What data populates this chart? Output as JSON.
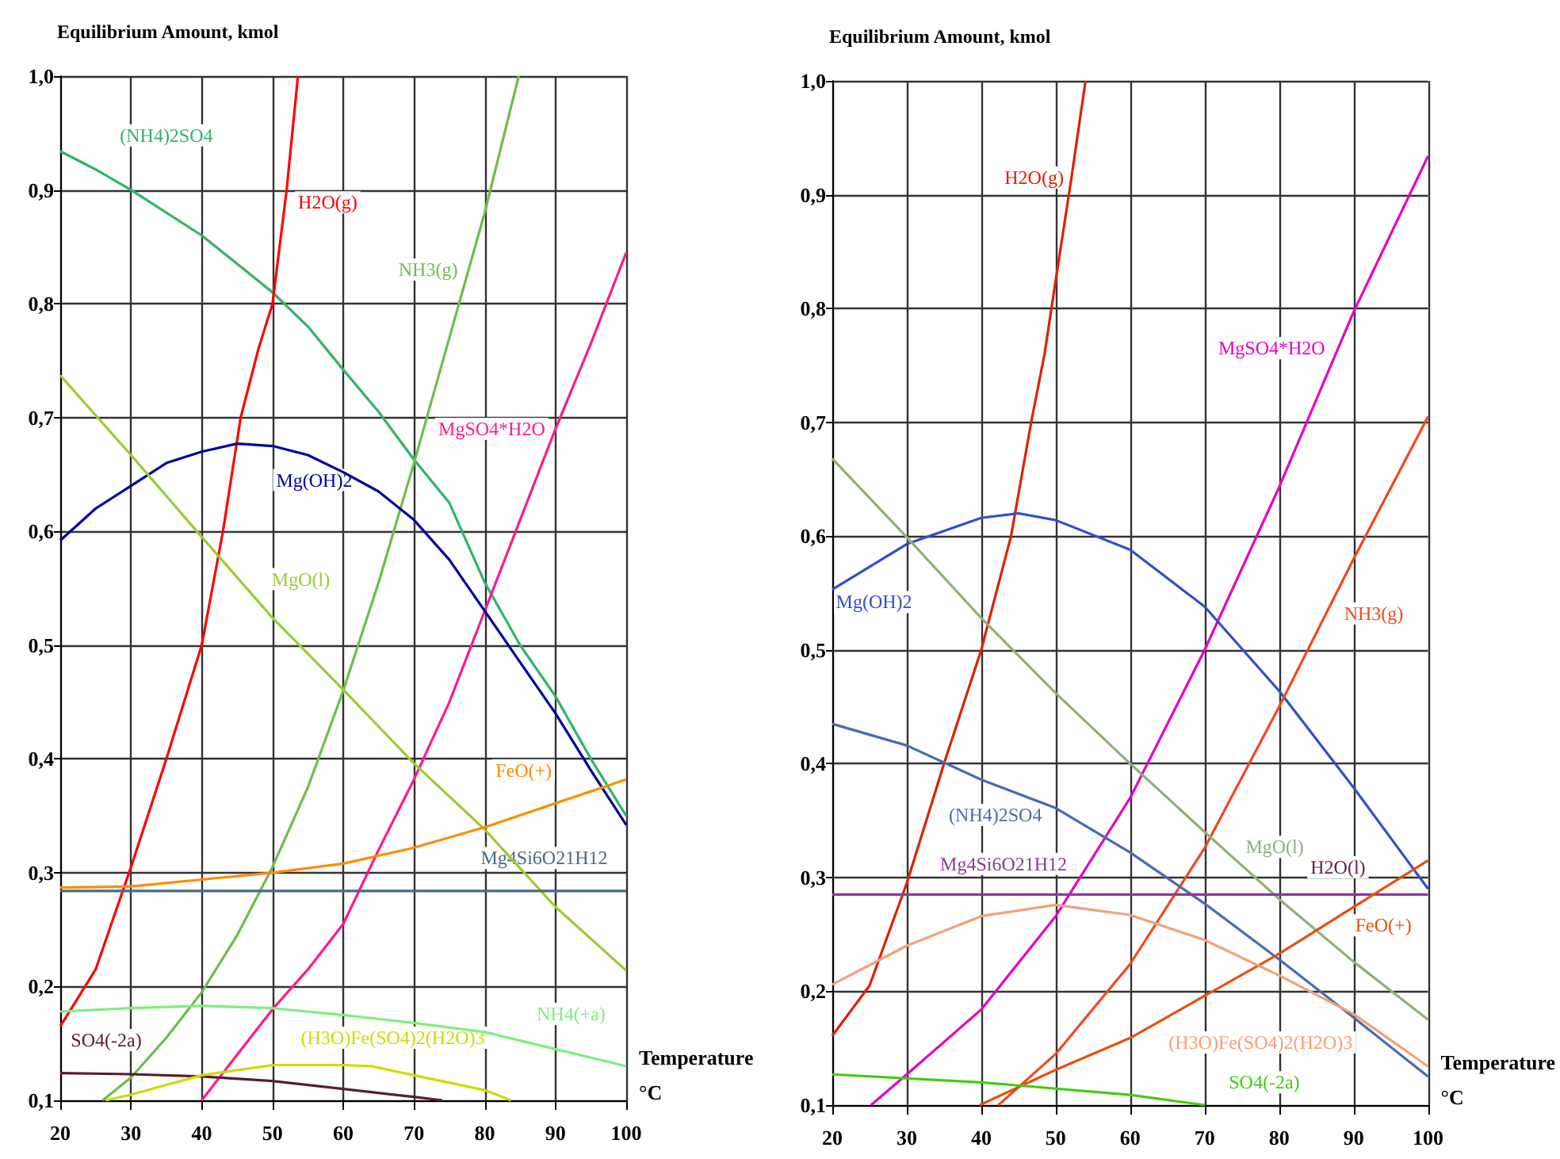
{
  "chart_data": [
    {
      "type": "line",
      "xlabel": "Temperature °C",
      "ylabel": "Equilibrium Amount, kmol",
      "xlim": [
        20,
        100
      ],
      "ylim": [
        0.1,
        1.0
      ],
      "xticks": [
        20,
        30,
        40,
        50,
        60,
        70,
        80,
        90,
        100
      ],
      "yticks": [
        {
          "value": 0.1,
          "label": "0,1"
        },
        {
          "value": 0.2,
          "label": "0,2"
        },
        {
          "value": 0.3,
          "label": "0,3"
        },
        {
          "value": 0.4,
          "label": "0,4"
        },
        {
          "value": 0.5,
          "label": "0,5"
        },
        {
          "value": 0.6,
          "label": "0,6"
        },
        {
          "value": 0.7,
          "label": "0,7"
        },
        {
          "value": 0.8,
          "label": "0,8"
        },
        {
          "value": 0.9,
          "label": "0,9"
        },
        {
          "value": 1.0,
          "label": "1,0"
        }
      ],
      "grid": true,
      "series": [
        {
          "name": "(NH4)2SO4",
          "color": "#33b36b",
          "x": [
            20,
            25,
            30,
            35,
            40,
            45,
            50,
            55,
            60,
            65,
            70,
            75,
            80,
            85,
            90,
            95,
            100
          ],
          "values": [
            0.934,
            0.918,
            0.9,
            0.88,
            0.86,
            0.835,
            0.81,
            0.78,
            0.742,
            0.705,
            0.663,
            0.625,
            0.555,
            0.5,
            0.455,
            0.4,
            0.35
          ]
        },
        {
          "name": "H2O(g)",
          "color": "#ff0000",
          "x": [
            20,
            25,
            30,
            35,
            40,
            43,
            45.5,
            48,
            50,
            52,
            53.6
          ],
          "values": [
            0.165,
            0.215,
            0.305,
            0.4,
            0.5,
            0.6,
            0.7,
            0.76,
            0.8,
            0.9,
            1.0
          ]
        },
        {
          "name": "NH3(g)",
          "color": "#6abf4b",
          "x": [
            26,
            30,
            35,
            40,
            45,
            50,
            55,
            60,
            65,
            70,
            75,
            80,
            84.8
          ],
          "values": [
            0.1,
            0.12,
            0.155,
            0.195,
            0.245,
            0.305,
            0.375,
            0.46,
            0.555,
            0.66,
            0.77,
            0.88,
            1.0
          ]
        },
        {
          "name": "MgSO4*H2O",
          "color": "#ff1a8c",
          "x": [
            40,
            45,
            50,
            55,
            60,
            65,
            70,
            75,
            80,
            85,
            90,
            95,
            100
          ],
          "values": [
            0.1,
            0.14,
            0.18,
            0.215,
            0.255,
            0.32,
            0.382,
            0.45,
            0.53,
            0.61,
            0.69,
            0.765,
            0.845
          ]
        },
        {
          "name": "Mg(OH)2",
          "color": "#00009c",
          "x": [
            20,
            25,
            30,
            35,
            40,
            45,
            50,
            55,
            60,
            65,
            70,
            75,
            80,
            85,
            90,
            95,
            100
          ],
          "values": [
            0.592,
            0.62,
            0.64,
            0.66,
            0.67,
            0.677,
            0.675,
            0.667,
            0.652,
            0.635,
            0.61,
            0.575,
            0.53,
            0.485,
            0.44,
            0.39,
            0.342
          ]
        },
        {
          "name": "MgO(l)",
          "color": "#9acd32",
          "x": [
            20,
            30,
            40,
            50,
            60,
            70,
            80,
            90,
            100
          ],
          "values": [
            0.737,
            0.667,
            0.595,
            0.524,
            0.461,
            0.396,
            0.338,
            0.27,
            0.214
          ]
        },
        {
          "name": "FeO(+)",
          "color": "#ff8c00",
          "x": [
            20,
            30,
            40,
            50,
            60,
            70,
            80,
            90,
            100
          ],
          "values": [
            0.287,
            0.288,
            0.294,
            0.3,
            0.308,
            0.322,
            0.34,
            0.361,
            0.382
          ]
        },
        {
          "name": "Mg4Si6O21H12",
          "color": "#4a6a85",
          "x": [
            20,
            100
          ],
          "values": [
            0.284,
            0.284
          ]
        },
        {
          "name": "NH4(+a)",
          "color": "#80ee80",
          "x": [
            20,
            30,
            40,
            50,
            60,
            70,
            80,
            90,
            100
          ],
          "values": [
            0.178,
            0.181,
            0.183,
            0.181,
            0.175,
            0.168,
            0.16,
            0.145,
            0.13
          ]
        },
        {
          "name": "SO4(-2a)",
          "color": "#5c1a33",
          "x": [
            20,
            30,
            40,
            50,
            60,
            70,
            74
          ],
          "values": [
            0.124,
            0.123,
            0.121,
            0.117,
            0.11,
            0.103,
            0.1
          ]
        },
        {
          "name": "(H3O)Fe(SO4)2(H2O)3",
          "color": "#ccdd00",
          "x": [
            26.4,
            30,
            40,
            50,
            60,
            64,
            70,
            80,
            83.7
          ],
          "values": [
            0.1,
            0.105,
            0.122,
            0.131,
            0.131,
            0.13,
            0.122,
            0.109,
            0.1
          ]
        }
      ]
    },
    {
      "type": "line",
      "xlabel": "Temperature °C",
      "ylabel": "Equilibrium Amount, kmol",
      "xlim": [
        20,
        100
      ],
      "ylim": [
        0.1,
        1.0
      ],
      "xticks": [
        20,
        30,
        40,
        50,
        60,
        70,
        80,
        90,
        100
      ],
      "yticks": [
        {
          "value": 0.1,
          "label": "0,1"
        },
        {
          "value": 0.2,
          "label": "0,2"
        },
        {
          "value": 0.3,
          "label": "0,3"
        },
        {
          "value": 0.4,
          "label": "0,4"
        },
        {
          "value": 0.5,
          "label": "0,5"
        },
        {
          "value": 0.6,
          "label": "0,6"
        },
        {
          "value": 0.7,
          "label": "0,7"
        },
        {
          "value": 0.8,
          "label": "0,8"
        },
        {
          "value": 0.9,
          "label": "0,9"
        },
        {
          "value": 1.0,
          "label": "1,0"
        }
      ],
      "grid": true,
      "series": [
        {
          "name": "H2O(g)",
          "color": "#dd2200",
          "x": [
            20,
            25,
            30,
            35,
            40,
            44,
            46.7,
            48.5,
            50,
            52,
            54
          ],
          "values": [
            0.161,
            0.205,
            0.295,
            0.4,
            0.5,
            0.6,
            0.7,
            0.76,
            0.825,
            0.91,
            1.0
          ]
        },
        {
          "name": "MgSO4*H2O",
          "color": "#e600c8",
          "x": [
            25.2,
            30,
            40,
            50,
            60,
            70,
            80,
            90,
            100
          ],
          "values": [
            0.1,
            0.127,
            0.184,
            0.266,
            0.37,
            0.5,
            0.643,
            0.797,
            0.934
          ]
        },
        {
          "name": "Mg(OH)2",
          "color": "#3050c8",
          "x": [
            20,
            30,
            40,
            45,
            50,
            60,
            70,
            80,
            90,
            100
          ],
          "values": [
            0.553,
            0.593,
            0.616,
            0.62,
            0.614,
            0.588,
            0.538,
            0.464,
            0.379,
            0.29
          ]
        },
        {
          "name": "NH3(g)",
          "color": "#f04a1e",
          "x": [
            42.3,
            50,
            60,
            70,
            80,
            90,
            100
          ],
          "values": [
            0.1,
            0.145,
            0.224,
            0.326,
            0.45,
            0.58,
            0.705
          ]
        },
        {
          "name": "(NH4)2SO4",
          "color": "#4a6ab4",
          "x": [
            20,
            30,
            40,
            50,
            60,
            70,
            80,
            90,
            100
          ],
          "values": [
            0.435,
            0.416,
            0.386,
            0.361,
            0.322,
            0.277,
            0.228,
            0.177,
            0.125
          ]
        },
        {
          "name": "MgO(l)",
          "color": "#8fb07a",
          "x": [
            20,
            30,
            40,
            50,
            60,
            70,
            80,
            90,
            100
          ],
          "values": [
            0.668,
            0.599,
            0.528,
            0.462,
            0.4,
            0.34,
            0.281,
            0.226,
            0.175
          ]
        },
        {
          "name": "Mg4Si6O21H12",
          "color": "#8b3a9c",
          "x": [
            20,
            100
          ],
          "values": [
            0.285,
            0.285
          ]
        },
        {
          "name": "H2O(l)",
          "color": "#6a2050"
        },
        {
          "name": "FeO(+)",
          "color": "#e85010",
          "x": [
            39.8,
            50,
            60,
            70,
            80,
            90,
            100
          ],
          "values": [
            0.1,
            0.131,
            0.159,
            0.196,
            0.233,
            0.274,
            0.315
          ]
        },
        {
          "name": "(H3O)Fe(SO4)2(H2O)3",
          "color": "#f4a07a",
          "x": [
            20,
            30,
            40,
            50,
            60,
            70,
            80,
            90,
            100
          ],
          "values": [
            0.206,
            0.24,
            0.266,
            0.276,
            0.267,
            0.245,
            0.214,
            0.18,
            0.134
          ]
        },
        {
          "name": "SO4(-2a)",
          "color": "#44cc11",
          "x": [
            20,
            40,
            60,
            70
          ],
          "values": [
            0.127,
            0.12,
            0.109,
            0.1
          ]
        }
      ]
    }
  ]
}
